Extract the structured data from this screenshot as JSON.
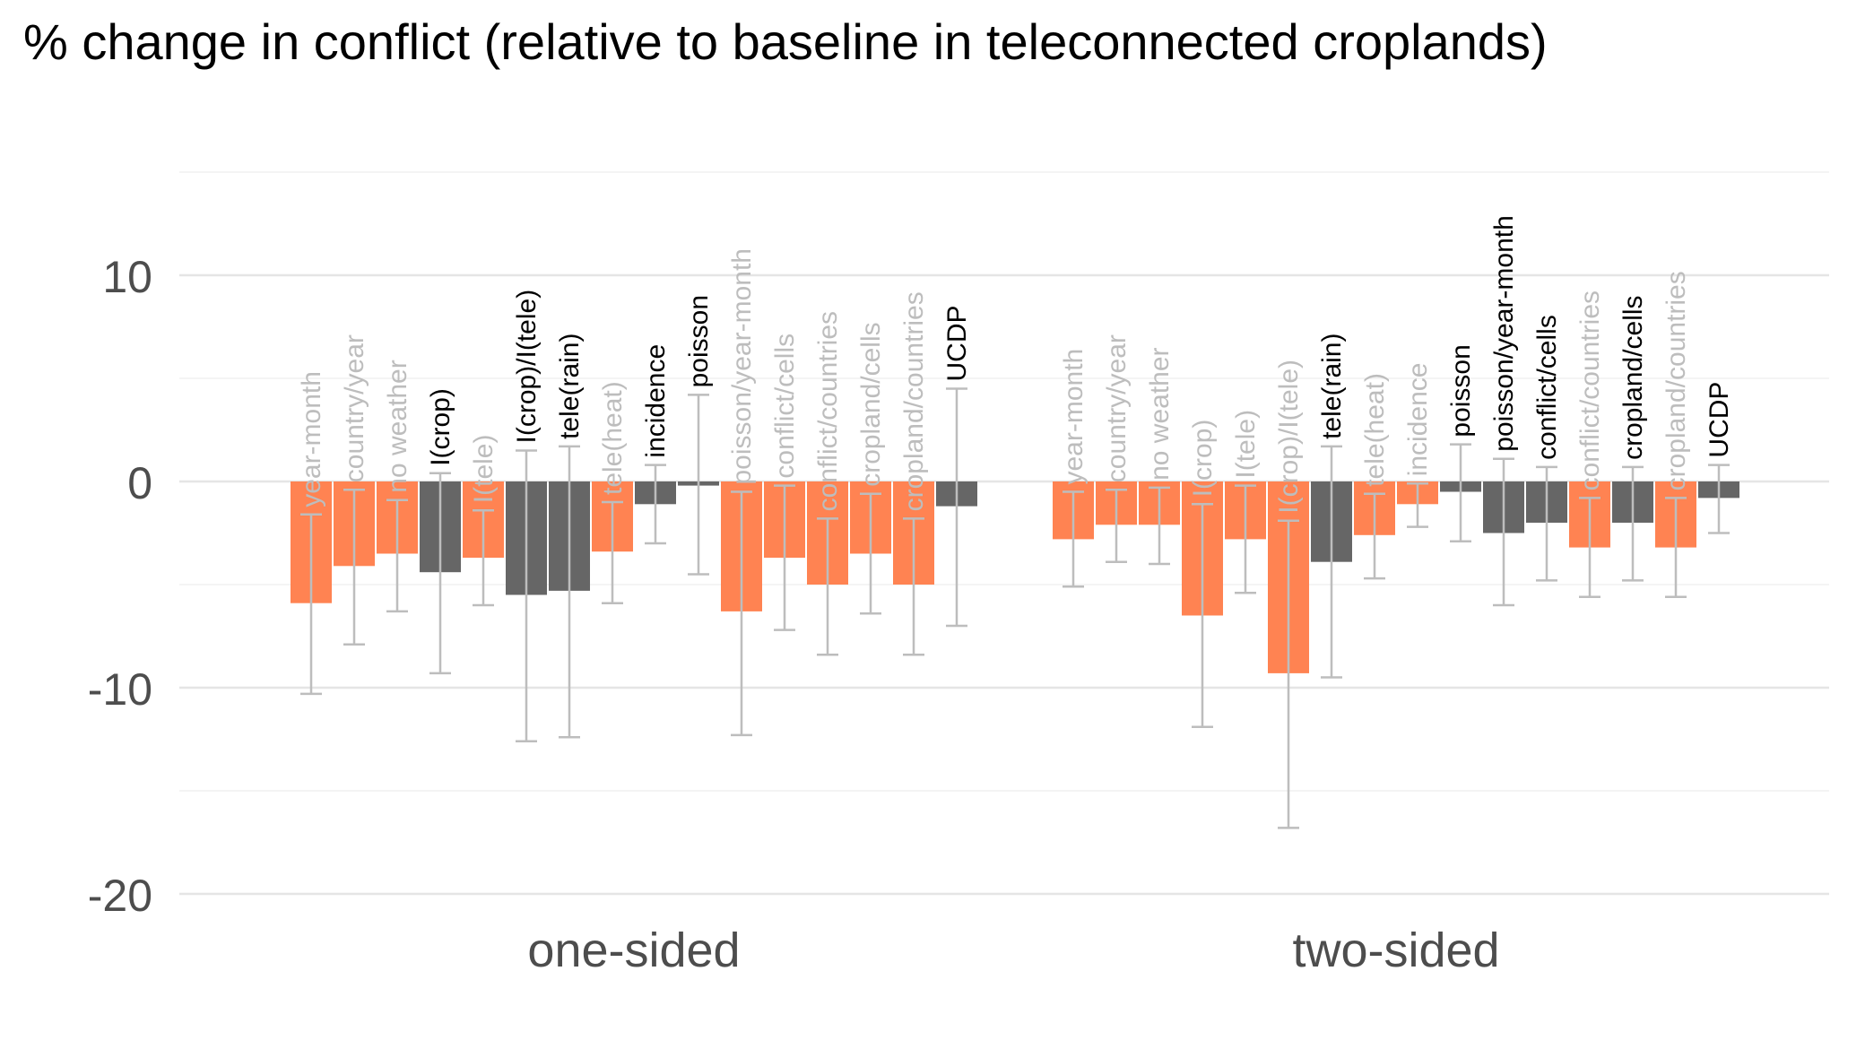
{
  "chart_data": {
    "type": "bar",
    "title": "% change in conflict (relative to baseline in teleconnected croplands)",
    "xlabel": "",
    "ylabel": "",
    "ylim": [
      -23,
      15.5
    ],
    "yticks": [
      10,
      0,
      -10,
      -20
    ],
    "ytick_labels": [
      "10",
      "0",
      "-10",
      "-20"
    ],
    "grid": true,
    "legend": "none",
    "colors": {
      "highlighted_bar": "#ff8352",
      "plain_bar": "#666666",
      "error_bar": "#bdbdbd",
      "label_bold": "#000000",
      "label_faded": "#bdbdbd",
      "grid_major": "#e5e5e5",
      "grid_minor": "#f0f0f0",
      "tick_text": "#4d4d4d"
    },
    "groups": [
      {
        "name": "one-sided",
        "bars": [
          {
            "label": "year-month",
            "value": -5.9,
            "lo": -10.3,
            "hi": -1.6,
            "color": "orange",
            "label_style": "faded"
          },
          {
            "label": "country/year",
            "value": -4.1,
            "lo": -7.9,
            "hi": -0.4,
            "color": "orange",
            "label_style": "faded"
          },
          {
            "label": "no weather",
            "value": -3.5,
            "lo": -6.3,
            "hi": -0.9,
            "color": "orange",
            "label_style": "faded"
          },
          {
            "label": "I(crop)",
            "value": -4.4,
            "lo": -9.3,
            "hi": 0.4,
            "color": "gray",
            "label_style": "bold"
          },
          {
            "label": "I(tele)",
            "value": -3.7,
            "lo": -6.0,
            "hi": -1.4,
            "color": "orange",
            "label_style": "faded"
          },
          {
            "label": "I(crop)/I(tele)",
            "value": -5.5,
            "lo": -12.6,
            "hi": 1.5,
            "color": "gray",
            "label_style": "bold"
          },
          {
            "label": "tele(rain)",
            "value": -5.3,
            "lo": -12.4,
            "hi": 1.7,
            "color": "gray",
            "label_style": "bold"
          },
          {
            "label": "tele(heat)",
            "value": -3.4,
            "lo": -5.9,
            "hi": -1.0,
            "color": "orange",
            "label_style": "faded"
          },
          {
            "label": "incidence",
            "value": -1.1,
            "lo": -3.0,
            "hi": 0.8,
            "color": "gray",
            "label_style": "bold"
          },
          {
            "label": "poisson",
            "value": -0.2,
            "lo": -4.5,
            "hi": 4.2,
            "color": "gray",
            "label_style": "bold"
          },
          {
            "label": "poisson/year-month",
            "value": -6.3,
            "lo": -12.3,
            "hi": -0.5,
            "color": "orange",
            "label_style": "faded"
          },
          {
            "label": "conflict/cells",
            "value": -3.7,
            "lo": -7.2,
            "hi": -0.2,
            "color": "orange",
            "label_style": "faded"
          },
          {
            "label": "conflict/countries",
            "value": -5.0,
            "lo": -8.4,
            "hi": -1.8,
            "color": "orange",
            "label_style": "faded"
          },
          {
            "label": "cropland/cells",
            "value": -3.5,
            "lo": -6.4,
            "hi": -0.6,
            "color": "orange",
            "label_style": "faded"
          },
          {
            "label": "cropland/countries",
            "value": -5.0,
            "lo": -8.4,
            "hi": -1.8,
            "color": "orange",
            "label_style": "faded"
          },
          {
            "label": "UCDP",
            "value": -1.2,
            "lo": -7.0,
            "hi": 4.5,
            "color": "gray",
            "label_style": "bold"
          }
        ]
      },
      {
        "name": "two-sided",
        "bars": [
          {
            "label": "year-month",
            "value": -2.8,
            "lo": -5.1,
            "hi": -0.5,
            "color": "orange",
            "label_style": "faded"
          },
          {
            "label": "country/year",
            "value": -2.1,
            "lo": -3.9,
            "hi": -0.4,
            "color": "orange",
            "label_style": "faded"
          },
          {
            "label": "no weather",
            "value": -2.1,
            "lo": -4.0,
            "hi": -0.3,
            "color": "orange",
            "label_style": "faded"
          },
          {
            "label": "I(crop)",
            "value": -6.5,
            "lo": -11.9,
            "hi": -1.1,
            "color": "orange",
            "label_style": "faded"
          },
          {
            "label": "I(tele)",
            "value": -2.8,
            "lo": -5.4,
            "hi": -0.2,
            "color": "orange",
            "label_style": "faded"
          },
          {
            "label": "I(crop)/I(tele)",
            "value": -9.3,
            "lo": -16.8,
            "hi": -1.9,
            "color": "orange",
            "label_style": "faded"
          },
          {
            "label": "tele(rain)",
            "value": -3.9,
            "lo": -9.5,
            "hi": 1.7,
            "color": "gray",
            "label_style": "bold"
          },
          {
            "label": "tele(heat)",
            "value": -2.6,
            "lo": -4.7,
            "hi": -0.6,
            "color": "orange",
            "label_style": "faded"
          },
          {
            "label": "incidence",
            "value": -1.1,
            "lo": -2.2,
            "hi": -0.1,
            "color": "orange",
            "label_style": "faded"
          },
          {
            "label": "poisson",
            "value": -0.5,
            "lo": -2.9,
            "hi": 1.8,
            "color": "gray",
            "label_style": "bold"
          },
          {
            "label": "poisson/year-month",
            "value": -2.5,
            "lo": -6.0,
            "hi": 1.1,
            "color": "gray",
            "label_style": "bold"
          },
          {
            "label": "conflict/cells",
            "value": -2.0,
            "lo": -4.8,
            "hi": 0.7,
            "color": "gray",
            "label_style": "bold"
          },
          {
            "label": "conflict/countries",
            "value": -3.2,
            "lo": -5.6,
            "hi": -0.8,
            "color": "orange",
            "label_style": "faded"
          },
          {
            "label": "cropland/cells",
            "value": -2.0,
            "lo": -4.8,
            "hi": 0.7,
            "color": "gray",
            "label_style": "bold"
          },
          {
            "label": "cropland/countries",
            "value": -3.2,
            "lo": -5.6,
            "hi": -0.8,
            "color": "orange",
            "label_style": "faded"
          },
          {
            "label": "UCDP",
            "value": -0.8,
            "lo": -2.5,
            "hi": 0.8,
            "color": "gray",
            "label_style": "bold"
          }
        ]
      }
    ]
  }
}
